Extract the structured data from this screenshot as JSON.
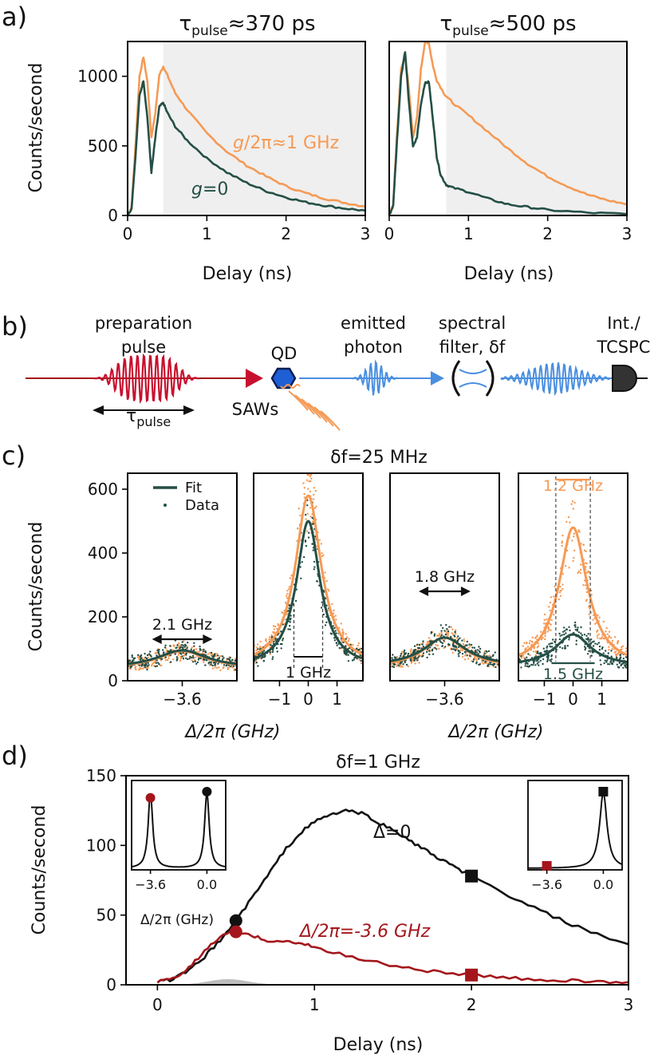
{
  "colors": {
    "orange": "#f59a55",
    "green": "#244f46",
    "red": "#a4161c",
    "blue": "#4a8fe0",
    "black": "#111111",
    "shade": "#efefef",
    "gray": "#bdbdbd"
  },
  "panel_labels": {
    "a": "a)",
    "b": "b)",
    "c": "c)",
    "d": "d)"
  },
  "chart_data": [
    {
      "id": "a1",
      "type": "line",
      "title_main": "τ",
      "title_sub": "pulse",
      "title_rest": "≈370 ps",
      "xlabel": "Delay (ns)",
      "ylabel": "Counts/second",
      "xlim": [
        0,
        3
      ],
      "ylim": [
        0,
        1250
      ],
      "xticks": [
        0,
        1,
        2,
        3
      ],
      "yticks": [
        0,
        500,
        1000
      ],
      "shade_from": 0.45,
      "annotations": {
        "orange_g": "g",
        "orange_rest": "/2π≈1 GHz",
        "green_g": "g",
        "green_rest": "=0"
      },
      "series": [
        {
          "name": "g/2π≈1 GHz",
          "color": "orange",
          "x": [
            0,
            0.05,
            0.1,
            0.15,
            0.2,
            0.25,
            0.3,
            0.35,
            0.4,
            0.45,
            0.5,
            0.6,
            0.75,
            1.0,
            1.25,
            1.5,
            1.75,
            2.0,
            2.25,
            2.5,
            2.75,
            3.0
          ],
          "y": [
            0,
            60,
            500,
            1000,
            1140,
            960,
            560,
            740,
            1010,
            1070,
            1010,
            880,
            760,
            590,
            460,
            360,
            280,
            210,
            160,
            120,
            90,
            65
          ]
        },
        {
          "name": "g=0",
          "color": "green",
          "x": [
            0,
            0.05,
            0.1,
            0.15,
            0.2,
            0.25,
            0.3,
            0.35,
            0.4,
            0.45,
            0.5,
            0.6,
            0.75,
            1.0,
            1.25,
            1.5,
            1.75,
            2.0,
            2.25,
            2.5,
            2.75,
            3.0
          ],
          "y": [
            0,
            50,
            430,
            860,
            970,
            700,
            310,
            560,
            780,
            810,
            740,
            640,
            540,
            410,
            310,
            235,
            175,
            130,
            95,
            70,
            50,
            35
          ]
        }
      ]
    },
    {
      "id": "a2",
      "type": "line",
      "title_main": "τ",
      "title_sub": "pulse",
      "title_rest": "≈500 ps",
      "xlabel": "Delay (ns)",
      "xlim": [
        0,
        3
      ],
      "ylim": [
        0,
        1250
      ],
      "xticks": [
        0,
        1,
        2,
        3
      ],
      "shade_from": 0.72,
      "series": [
        {
          "name": "g/2π≈1 GHz",
          "color": "orange",
          "x": [
            0,
            0.05,
            0.1,
            0.15,
            0.2,
            0.25,
            0.3,
            0.35,
            0.4,
            0.45,
            0.5,
            0.55,
            0.6,
            0.7,
            0.8,
            1.0,
            1.25,
            1.5,
            1.75,
            2.0,
            2.25,
            2.5,
            2.75,
            3.0
          ],
          "y": [
            0,
            80,
            600,
            1050,
            1150,
            900,
            560,
            700,
            1050,
            1240,
            1240,
            1080,
            970,
            870,
            810,
            720,
            600,
            480,
            370,
            280,
            210,
            150,
            110,
            80
          ]
        },
        {
          "name": "g=0",
          "color": "green",
          "x": [
            0,
            0.05,
            0.1,
            0.15,
            0.2,
            0.25,
            0.3,
            0.35,
            0.4,
            0.45,
            0.5,
            0.55,
            0.6,
            0.65,
            0.72,
            0.8,
            1.0,
            1.25,
            1.5,
            1.75,
            2.0,
            2.5,
            3.0
          ],
          "y": [
            0,
            70,
            550,
            1000,
            1180,
            800,
            490,
            560,
            800,
            950,
            960,
            700,
            420,
            290,
            220,
            200,
            170,
            120,
            80,
            60,
            40,
            20,
            10
          ]
        }
      ]
    },
    {
      "id": "c",
      "type": "line",
      "title": "δf=25 MHz",
      "ylabel": "Counts/second",
      "xlabel": "Δ/2π (GHz)",
      "ylim": [
        0,
        650
      ],
      "yticks": [
        0,
        200,
        400,
        600
      ],
      "legend": [
        "Fit",
        "Data"
      ],
      "subplots": [
        {
          "center": -3.6,
          "xlim": [
            -5.5,
            -1.7
          ],
          "xticks": [
            -3.6
          ],
          "tick_labels": [
            "−3.6"
          ],
          "series": [
            {
              "color": "orange",
              "amp": 55,
              "width": 2.1,
              "base": 38
            },
            {
              "color": "green",
              "amp": 55,
              "width": 2.1,
              "base": 40
            }
          ],
          "annotation": "2.1 GHz"
        },
        {
          "center": 0,
          "xlim": [
            -1.9,
            1.9
          ],
          "xticks": [
            -1,
            0,
            1
          ],
          "tick_labels": [
            "−1",
            "0",
            "1"
          ],
          "series": [
            {
              "color": "orange",
              "amp": 540,
              "width": 1.1,
              "base": 40
            },
            {
              "color": "green",
              "amp": 460,
              "width": 1.0,
              "base": 40
            }
          ],
          "annotation": "1 GHz"
        },
        {
          "center": -3.6,
          "xlim": [
            -5.5,
            -1.7
          ],
          "xticks": [
            -3.6
          ],
          "tick_labels": [
            "−3.6"
          ],
          "series": [
            {
              "color": "orange",
              "amp": 95,
              "width": 1.8,
              "base": 40
            },
            {
              "color": "green",
              "amp": 90,
              "width": 1.8,
              "base": 45
            }
          ],
          "annotation": "1.8 GHz"
        },
        {
          "center": 0,
          "xlim": [
            -1.9,
            1.9
          ],
          "xticks": [
            -1,
            0,
            1
          ],
          "tick_labels": [
            "−1",
            "0",
            "1"
          ],
          "series": [
            {
              "color": "orange",
              "amp": 440,
              "width": 1.2,
              "base": 40
            },
            {
              "color": "green",
              "amp": 100,
              "width": 1.5,
              "base": 45
            }
          ],
          "annotation_top": "1.2 GHz",
          "annotation_bottom": "1.5 GHz"
        }
      ]
    },
    {
      "id": "d",
      "type": "line",
      "title": "δf=1 GHz",
      "xlabel": "Delay (ns)",
      "ylabel": "Counts/second",
      "xlim": [
        -0.2,
        3.0
      ],
      "ylim": [
        0,
        150
      ],
      "xticks": [
        0,
        1,
        2,
        3
      ],
      "yticks": [
        0,
        50,
        100,
        150
      ],
      "annotations": {
        "black": "Δ=0",
        "red": "Δ/2π=-3.6 GHz"
      },
      "series": [
        {
          "name": "Δ=0",
          "color": "black",
          "x": [
            0,
            0.1,
            0.2,
            0.3,
            0.4,
            0.5,
            0.6,
            0.7,
            0.8,
            0.9,
            1.0,
            1.1,
            1.2,
            1.3,
            1.4,
            1.5,
            1.6,
            1.7,
            1.8,
            1.9,
            2.0,
            2.2,
            2.4,
            2.6,
            2.8,
            3.0
          ],
          "y": [
            2,
            4,
            10,
            20,
            32,
            46,
            62,
            78,
            95,
            108,
            117,
            122,
            125,
            123,
            117,
            111,
            104,
            97,
            90,
            84,
            78,
            66,
            55,
            45,
            36,
            29
          ]
        },
        {
          "name": "Δ/2π=-3.6 GHz",
          "color": "red",
          "x": [
            0,
            0.1,
            0.2,
            0.3,
            0.4,
            0.5,
            0.6,
            0.7,
            0.8,
            0.9,
            1.0,
            1.2,
            1.4,
            1.6,
            1.8,
            2.0,
            2.2,
            2.4,
            2.6,
            2.8,
            3.0
          ],
          "y": [
            2,
            4,
            12,
            24,
            35,
            38,
            35,
            32,
            31,
            30,
            27,
            21,
            16,
            12,
            9,
            7,
            5,
            4,
            3,
            2,
            2
          ]
        }
      ],
      "markers": [
        {
          "x": 0.5,
          "y": 46,
          "shape": "circle",
          "color": "black"
        },
        {
          "x": 0.5,
          "y": 38,
          "shape": "circle",
          "color": "red"
        },
        {
          "x": 2.0,
          "y": 78,
          "shape": "square",
          "color": "black"
        },
        {
          "x": 2.0,
          "y": 7,
          "shape": "square",
          "color": "red"
        }
      ],
      "insets": [
        {
          "position": "top-left",
          "xticklabels": [
            "−3.6",
            "0.0"
          ],
          "xlabel": "Δ/2π (GHz)",
          "marker_shape": "circle"
        },
        {
          "position": "top-right",
          "xticklabels": [
            "−3.6",
            "0.0"
          ],
          "marker_shape": "square"
        }
      ]
    }
  ],
  "schematic": {
    "preparation_pulse": "preparation pulse",
    "prep_line1": "preparation",
    "prep_line2": "pulse",
    "tau": "τ",
    "tau_sub": "pulse",
    "qd": "QD",
    "saws": "SAWs",
    "emitted_line1": "emitted",
    "emitted_line2": "photon",
    "filter_line1": "spectral",
    "filter_line2": "filter, δf",
    "detector_line1": "Int./",
    "detector_line2": "TCSPC"
  }
}
